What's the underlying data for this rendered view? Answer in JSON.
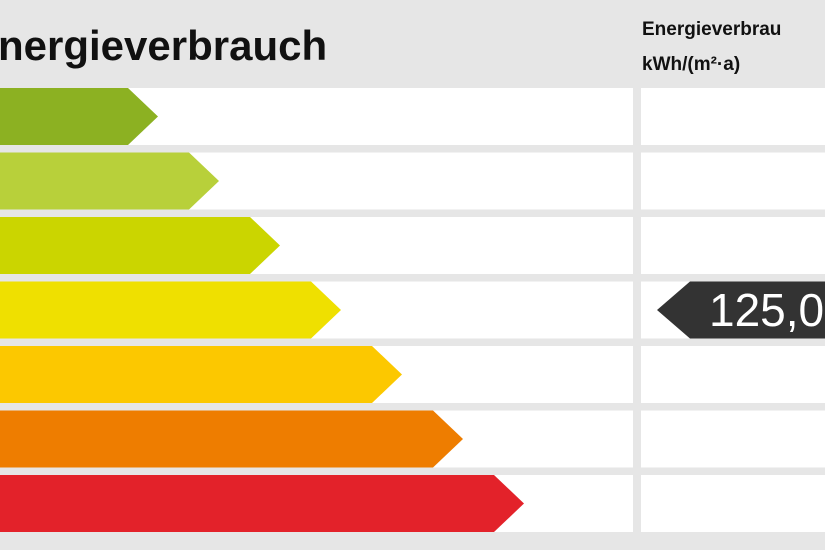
{
  "header": {
    "title": "nergieverbrauch",
    "column_title": "Energieverbrau",
    "unit": "kWh/(m²·a)"
  },
  "scale": {
    "colors": [
      "#8cb122",
      "#b8d03a",
      "#cbd500",
      "#efe000",
      "#fcc800",
      "#ee7d00",
      "#e3222a"
    ]
  },
  "marker": {
    "label": "125,0"
  }
}
